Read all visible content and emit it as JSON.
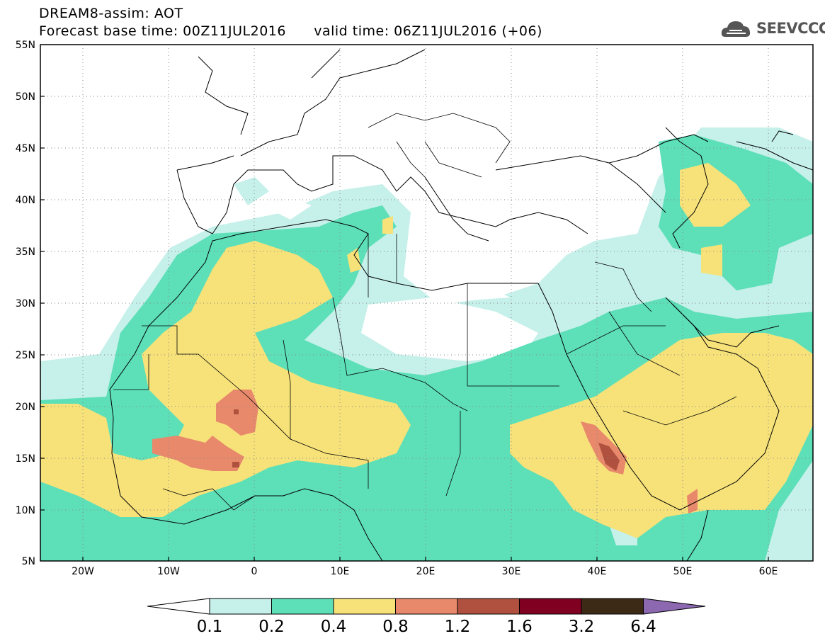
{
  "header": {
    "title": "DREAM8-assim: AOT",
    "base_time_label": "Forecast base time:",
    "base_time": "00Z11JUL2016",
    "valid_time_label": "valid time:",
    "valid_time": "06Z11JUL2016",
    "lead": "(+06)"
  },
  "logo": {
    "text": "SEEVCCC",
    "icon": "cloud-icon"
  },
  "map": {
    "region": "North Africa, Middle East, Mediterranean",
    "lon_range": [
      -25,
      65
    ],
    "lat_range": [
      5,
      55
    ],
    "lon_ticks": [
      "20W",
      "10W",
      "0",
      "10E",
      "20E",
      "30E",
      "40E",
      "50E",
      "60E"
    ],
    "lat_ticks": [
      "55N",
      "50N",
      "45N",
      "40N",
      "35N",
      "30N",
      "25N",
      "20N",
      "15N",
      "10N",
      "5N"
    ],
    "grid": "dotted"
  },
  "colorbar": {
    "levels": [
      "0.1",
      "0.2",
      "0.4",
      "0.8",
      "1.2",
      "1.6",
      "3.2",
      "6.4"
    ],
    "colors": [
      "#c6f0ea",
      "#5ddfb8",
      "#f7e27a",
      "#e8896b",
      "#b0513f",
      "#800022",
      "#3d2a16"
    ],
    "under_color": "#ffffff",
    "over_color": "#8c68b0"
  }
}
